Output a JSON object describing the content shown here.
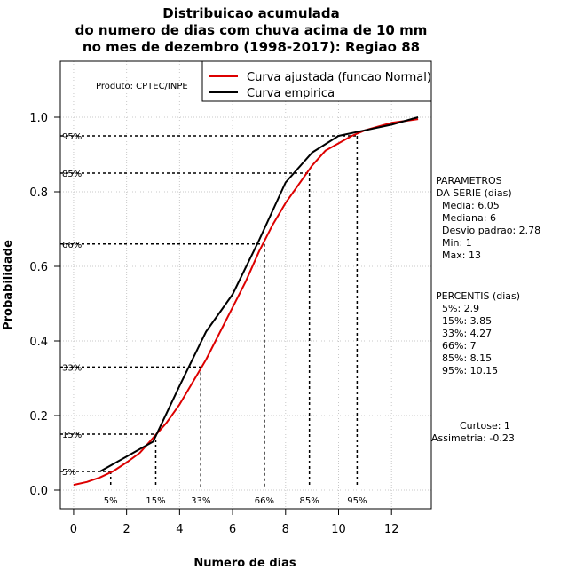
{
  "chart_data": {
    "type": "line",
    "title_lines": [
      "Distribuicao acumulada",
      "do numero de dias com chuva acima de 10 mm",
      "no mes de dezembro (1998-2017): Regiao 88"
    ],
    "xlabel": "Numero de dias",
    "ylabel": "Probabilidade",
    "xlim": [
      -0.5,
      13.5
    ],
    "ylim": [
      -0.05,
      1.15
    ],
    "x_ticks": [
      0,
      2,
      4,
      6,
      8,
      10,
      12
    ],
    "x_tick_labels": [
      "0",
      "2",
      "4",
      "6",
      "8",
      "10",
      "12"
    ],
    "y_ticks": [
      0.0,
      0.2,
      0.4,
      0.6,
      0.8,
      1.0
    ],
    "y_tick_labels": [
      "0.0",
      "0.2",
      "0.4",
      "0.6",
      "0.8",
      "1.0"
    ],
    "grid": true,
    "producer": "Produto: CPTEC/INPE",
    "legend": {
      "position": "top-right",
      "entries": [
        {
          "label": "Curva ajustada (funcao Normal)",
          "color": "#dd0000"
        },
        {
          "label": "Curva empirica",
          "color": "#000000"
        }
      ]
    },
    "series": [
      {
        "name": "Curva ajustada (funcao Normal)",
        "color": "#dd0000",
        "x": [
          0,
          0.5,
          1,
          1.5,
          2,
          2.5,
          3,
          3.5,
          4,
          4.5,
          5,
          5.5,
          6,
          6.5,
          7,
          7.5,
          8,
          8.5,
          9,
          9.5,
          10,
          10.5,
          11,
          11.5,
          12,
          12.5,
          13
        ],
        "y": [
          0.014,
          0.022,
          0.034,
          0.051,
          0.074,
          0.1,
          0.14,
          0.18,
          0.23,
          0.29,
          0.35,
          0.42,
          0.49,
          0.56,
          0.64,
          0.71,
          0.77,
          0.82,
          0.87,
          0.91,
          0.93,
          0.95,
          0.965,
          0.975,
          0.985,
          0.99,
          0.995
        ]
      },
      {
        "name": "Curva empirica",
        "color": "#000000",
        "x": [
          1,
          2,
          3,
          4,
          5,
          6,
          7,
          8,
          9,
          10,
          11,
          12,
          13
        ],
        "y": [
          0.05,
          0.09,
          0.13,
          0.28,
          0.425,
          0.525,
          0.67,
          0.825,
          0.905,
          0.95,
          0.965,
          0.98,
          1.0
        ]
      }
    ],
    "percentile_guides": [
      {
        "label": "5%",
        "x": 1.4,
        "y": 0.05
      },
      {
        "label": "15%",
        "x": 3.1,
        "y": 0.15
      },
      {
        "label": "33%",
        "x": 4.8,
        "y": 0.33
      },
      {
        "label": "66%",
        "x": 7.2,
        "y": 0.66
      },
      {
        "label": "85%",
        "x": 8.9,
        "y": 0.85
      },
      {
        "label": "95%",
        "x": 10.7,
        "y": 0.95
      }
    ],
    "parameters_block": [
      "PARAMETROS",
      "DA SERIE (dias)",
      "Media: 6.05",
      "Mediana: 6",
      "Desvio padrao: 2.78",
      "Min: 1",
      "Max: 13"
    ],
    "percentis_block": [
      "PERCENTIS (dias)",
      "5%: 2.9",
      "15%: 3.85",
      "33%: 4.27",
      "66%: 7",
      "85%: 8.15",
      "95%: 10.15"
    ],
    "curtose": "Curtose: 1",
    "assimetria": "Assimetria: -0.23"
  }
}
